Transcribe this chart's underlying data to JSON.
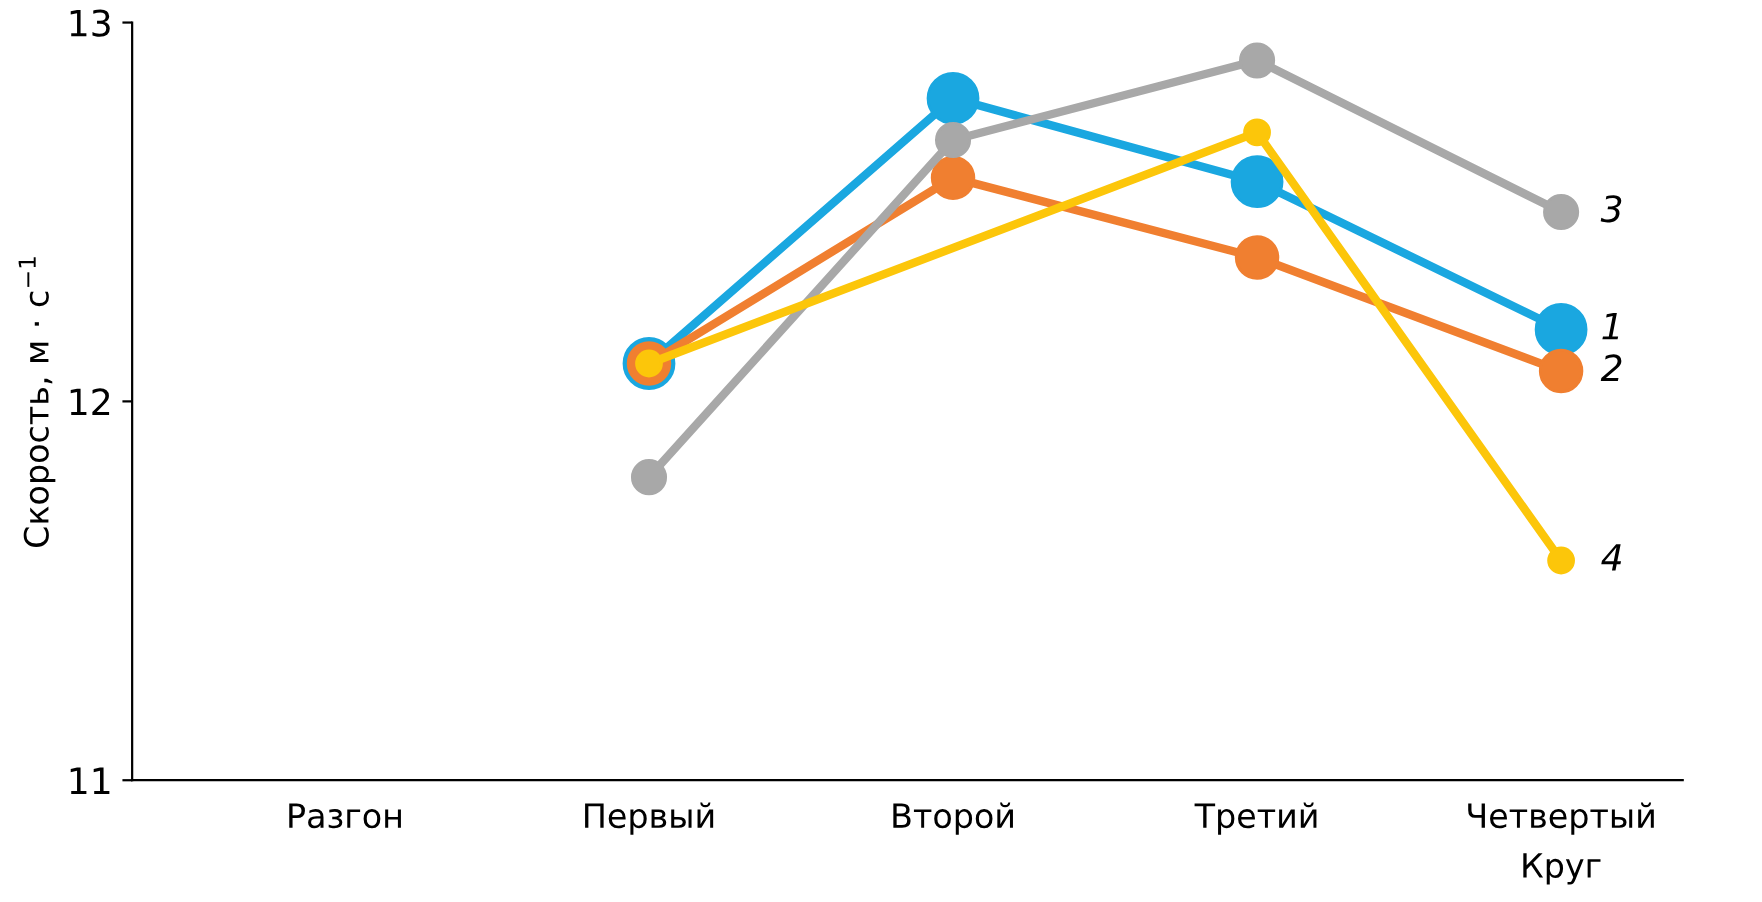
{
  "chart_data": {
    "type": "line",
    "ylabel": "Скорость, м · с$^{−1}$",
    "xlabel": "Круг",
    "categories": [
      "Разгон",
      "Первый",
      "Второй",
      "Третий",
      "Четвертый"
    ],
    "series": [
      {
        "name": "1",
        "color": "#1aa7e0",
        "values": [
          null,
          12.1,
          12.8,
          12.58,
          12.19
        ]
      },
      {
        "name": "2",
        "color": "#f07f30",
        "values": [
          null,
          12.1,
          12.59,
          12.38,
          12.08
        ]
      },
      {
        "name": "3",
        "color": "#a8a8a8",
        "values": [
          null,
          11.8,
          12.69,
          12.9,
          12.5
        ]
      },
      {
        "name": "4",
        "color": "#fcc60a",
        "values": [
          null,
          12.1,
          null,
          12.71,
          11.58
        ]
      }
    ],
    "ylim": [
      11,
      13
    ],
    "yticks": [
      11,
      12,
      13
    ],
    "marker": "circle",
    "line_style": "solid",
    "grid": false,
    "legend": false
  }
}
